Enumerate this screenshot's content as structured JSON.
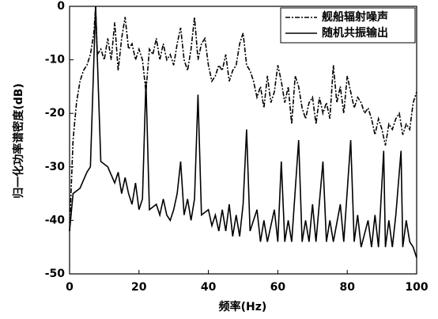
{
  "chart_data": {
    "type": "line",
    "xlabel": "频率(Hz)",
    "ylabel": "归一化功率谱密度(dB)",
    "xlim": [
      0,
      100
    ],
    "ylim": [
      -50,
      0
    ],
    "xticks": [
      0,
      20,
      40,
      60,
      80,
      100
    ],
    "yticks": [
      0,
      -10,
      -20,
      -30,
      -40,
      -50
    ],
    "legend": "upper right",
    "series": [
      {
        "name": "舰船辐射噪声",
        "color": "#000000",
        "dash": "dashdot",
        "x": [
          0,
          1,
          2,
          3,
          4,
          5,
          6,
          7,
          7.5,
          8,
          9,
          10,
          11,
          12,
          13,
          14,
          15,
          16,
          17,
          18,
          19,
          20,
          21,
          22,
          23,
          24,
          25,
          26,
          27,
          28,
          29,
          30,
          31,
          32,
          33,
          34,
          35,
          36,
          37,
          38,
          39,
          40,
          41,
          42,
          43,
          44,
          45,
          46,
          47,
          48,
          49,
          50,
          51,
          52,
          53,
          54,
          55,
          56,
          57,
          58,
          59,
          60,
          61,
          62,
          63,
          64,
          65,
          66,
          67,
          68,
          69,
          70,
          71,
          72,
          73,
          74,
          75,
          76,
          77,
          78,
          79,
          80,
          81,
          82,
          83,
          84,
          85,
          86,
          87,
          88,
          89,
          90,
          91,
          92,
          93,
          94,
          95,
          96,
          97,
          98,
          99,
          100
        ],
        "values": [
          -42,
          -25,
          -18,
          -14,
          -12,
          -11,
          -9,
          -5,
          0,
          -9,
          -8,
          -10,
          -6,
          -10,
          -3,
          -12,
          -6,
          -2,
          -8,
          -7,
          -10,
          -8,
          -10,
          -16,
          -8,
          -9,
          -6,
          -10,
          -7,
          -10,
          -9,
          -11,
          -7,
          -4,
          -10,
          -12,
          -8,
          -2,
          -10,
          -7,
          -6,
          -11,
          -14,
          -13,
          -11,
          -12,
          -9,
          -14,
          -12,
          -11,
          -7,
          -5,
          -11,
          -12,
          -14,
          -17,
          -15,
          -19,
          -13,
          -18,
          -16,
          -11,
          -14,
          -18,
          -15,
          -22,
          -13,
          -15,
          -19,
          -21,
          -18,
          -17,
          -22,
          -17,
          -20,
          -18,
          -21,
          -11,
          -18,
          -15,
          -20,
          -13,
          -16,
          -19,
          -17,
          -18,
          -20,
          -19,
          -21,
          -24,
          -21,
          -23,
          -26,
          -22,
          -23,
          -21,
          -20,
          -24,
          -22,
          -23,
          -18,
          -16
        ]
      },
      {
        "name": "随机共振输出",
        "color": "#000000",
        "dash": "solid",
        "x": [
          0,
          1,
          3,
          5,
          6,
          7.5,
          9,
          11,
          13,
          14,
          15,
          16,
          17,
          18,
          19,
          20,
          21,
          22,
          23,
          25,
          26,
          27,
          28,
          29,
          30,
          31,
          32,
          33,
          34,
          35,
          36,
          37,
          38,
          40,
          41,
          42,
          43,
          44,
          45,
          46,
          47,
          48,
          49,
          50,
          51,
          52,
          54,
          55,
          56,
          57,
          59,
          60,
          61,
          62,
          63,
          64,
          66,
          67,
          68,
          69,
          70,
          71,
          73,
          74,
          75,
          76,
          78,
          79,
          81,
          82,
          83,
          84,
          86,
          87,
          88,
          89,
          90.5,
          91,
          92,
          93,
          94,
          95.5,
          96,
          97,
          98,
          99,
          100
        ],
        "values": [
          -42,
          -35,
          -34,
          -31,
          -30,
          0,
          -29,
          -30,
          -33,
          -31,
          -35,
          -32,
          -35,
          -37,
          -33,
          -38,
          -36,
          -14,
          -38,
          -37,
          -39,
          -36,
          -39,
          -40,
          -38,
          -35,
          -29,
          -39,
          -36,
          -40,
          -36,
          -16.5,
          -39,
          -38,
          -41,
          -39,
          -42,
          -38,
          -42,
          -37,
          -43,
          -39,
          -43,
          -37,
          -23,
          -42,
          -38,
          -44,
          -40,
          -44,
          -38,
          -44,
          -29,
          -44,
          -40,
          -44,
          -25,
          -44,
          -40,
          -44,
          -37,
          -44,
          -29,
          -44,
          -40,
          -44,
          -37,
          -44,
          -25,
          -44,
          -39,
          -45,
          -40,
          -45,
          -39,
          -45,
          -27,
          -45,
          -40,
          -45,
          -39,
          -27,
          -45,
          -40,
          -44,
          -45,
          -47
        ]
      }
    ]
  }
}
